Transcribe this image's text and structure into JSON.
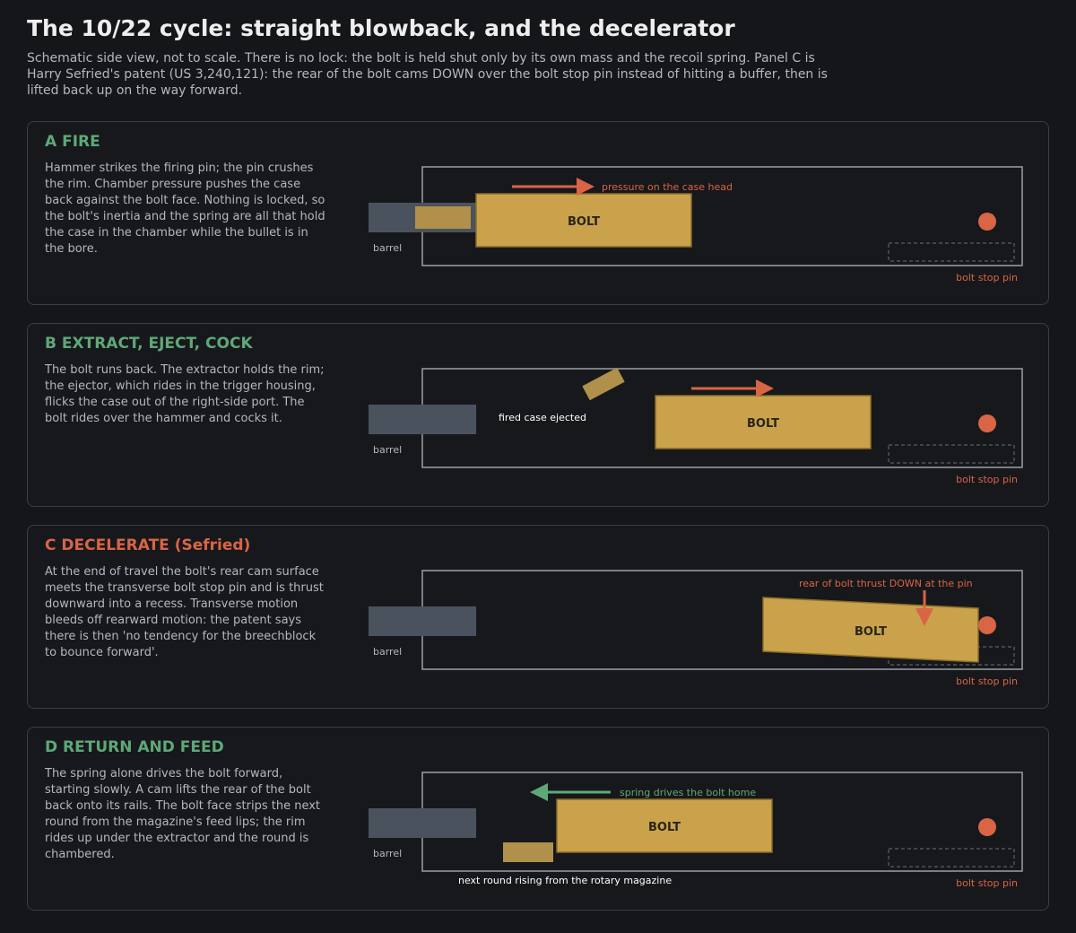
{
  "header": {
    "title": "The 10/22 cycle: straight blowback, and the decelerator",
    "subtitle": "Schematic side view, not to scale. There is no lock: the bolt is held shut only by its own mass and the recoil spring. Panel C is Harry Sefried's patent (US 3,240,121): the rear of the bolt cams DOWN over the bolt stop pin instead of hitting a buffer, then is lifted back up on the way forward."
  },
  "colors": {
    "background": "#151619",
    "panel_border": "#3a3d43",
    "green_heading": "#5ea878",
    "red_heading": "#d96446",
    "bolt": "#c9a24b",
    "bolt_border": "#8a6d28",
    "barrel": "#4a535d",
    "receiver_outline": "#9aa0a8",
    "arrow_red": "#d96446",
    "arrow_green": "#5ea878",
    "pin": "#d96446"
  },
  "panels": [
    {
      "id": "A",
      "heading": "A FIRE",
      "body": "Hammer strikes the firing pin; the pin crushes the rim. Chamber pressure pushes the case back against the bolt face. Nothing is locked, so the bolt's inertia and the spring are all that hold the case in the chamber while the bullet is in the bore.",
      "bolt_label": "BOLT",
      "barrel_label": "barrel",
      "pin_label": "bolt stop pin",
      "arrow_label": "pressure on the case head"
    },
    {
      "id": "B",
      "heading": "B EXTRACT, EJECT, COCK",
      "body": "The bolt runs back. The extractor holds the rim; the ejector, which rides in the trigger housing, flicks the case out of the right-side port. The bolt rides over the hammer and cocks it.",
      "bolt_label": "BOLT",
      "barrel_label": "barrel",
      "pin_label": "bolt stop pin",
      "case_label": "fired case ejected"
    },
    {
      "id": "C",
      "heading": "C DECELERATE (Sefried)",
      "body": "At the end of travel the bolt's rear cam surface meets the transverse bolt stop pin and is thrust downward into a recess. Transverse motion bleeds off rearward motion: the patent says there is then 'no tendency for the breechblock to bounce forward'.",
      "bolt_label": "BOLT",
      "barrel_label": "barrel",
      "pin_label": "bolt stop pin",
      "arrow_label": "rear of bolt thrust DOWN at the pin"
    },
    {
      "id": "D",
      "heading": "D RETURN AND FEED",
      "body": "The spring alone drives the bolt forward, starting slowly. A cam lifts the rear of the bolt back onto its rails. The bolt face strips the next round from the magazine's feed lips; the rim rides up under the extractor and the round is chambered.",
      "bolt_label": "BOLT",
      "barrel_label": "barrel",
      "pin_label": "bolt stop pin",
      "arrow_label": "spring drives the bolt home",
      "round_label": "next round rising from the rotary magazine"
    }
  ]
}
